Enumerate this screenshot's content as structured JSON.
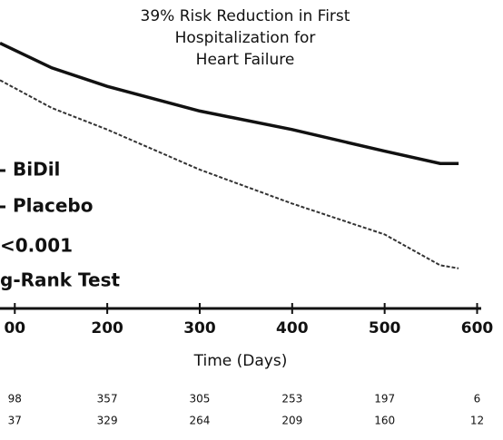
{
  "chart_data": {
    "type": "line",
    "title": [
      "39% Risk Reduction in First",
      "Hospitalization for",
      "Heart Failure"
    ],
    "x_label": "Time (Days)",
    "xlim": [
      84,
      628
    ],
    "ylim": [
      0,
      100
    ],
    "xticks": [
      {
        "value": 100,
        "label": "00"
      },
      200,
      300,
      400,
      500,
      600
    ],
    "x": [
      84,
      140,
      200,
      300,
      400,
      500,
      560,
      580
    ],
    "series": [
      {
        "name": "BiDil",
        "color": "#111111",
        "width": 3.5,
        "values": [
          86,
          78,
          72,
          64,
          58,
          51,
          47,
          47
        ]
      },
      {
        "name": "Placebo",
        "color": "#333333",
        "width": 2,
        "dashed": true,
        "values": [
          74,
          65,
          58,
          45,
          34,
          24,
          14,
          13
        ]
      }
    ],
    "annotations": [
      "<0.001",
      "g-Rank Test"
    ],
    "at_risk": [
      [
        98,
        357,
        305,
        253,
        197,
        6
      ],
      [
        37,
        329,
        264,
        209,
        160,
        12
      ]
    ]
  }
}
